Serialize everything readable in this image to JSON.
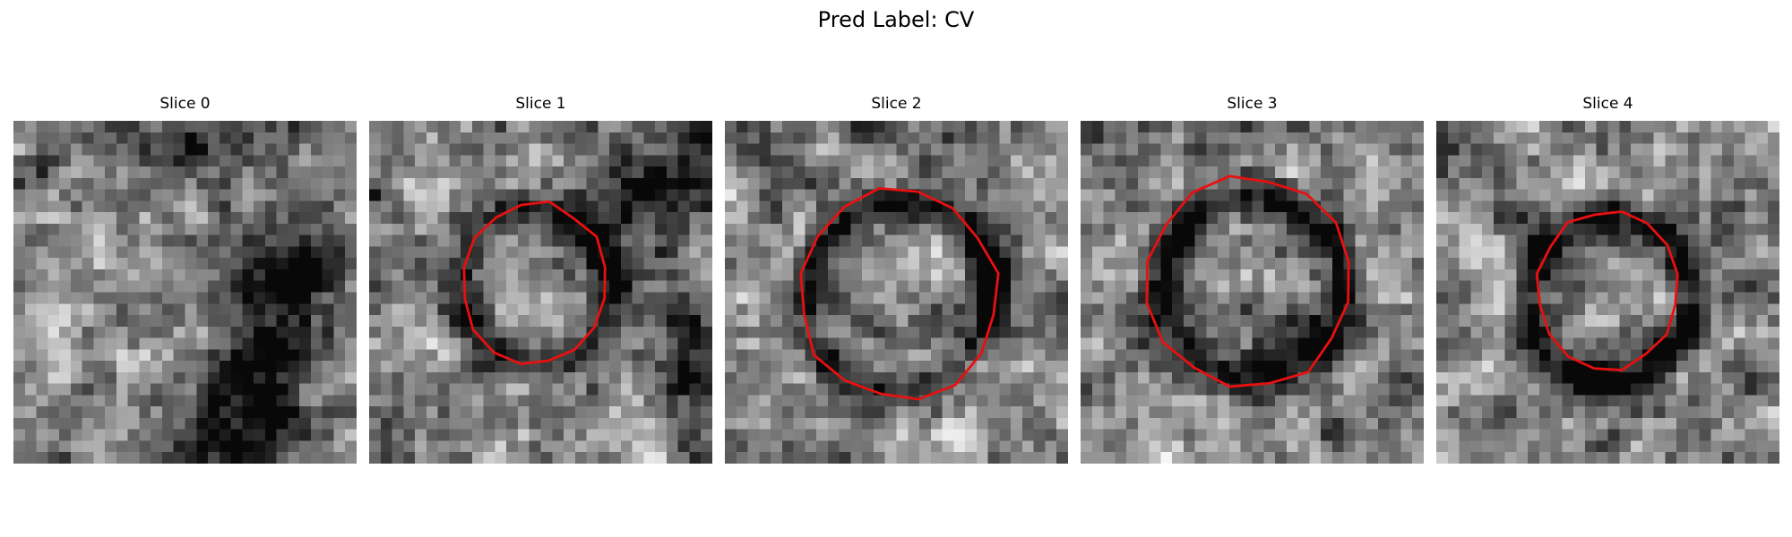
{
  "figure": {
    "suptitle": "Pred Label: CV"
  },
  "colors": {
    "contour": "#e81010",
    "background": "#ffffff"
  },
  "slices": [
    {
      "title": "Slice 0",
      "has_contour": false
    },
    {
      "title": "Slice 1",
      "has_contour": true
    },
    {
      "title": "Slice 2",
      "has_contour": true
    },
    {
      "title": "Slice 3",
      "has_contour": true
    },
    {
      "title": "Slice 4",
      "has_contour": true
    }
  ]
}
